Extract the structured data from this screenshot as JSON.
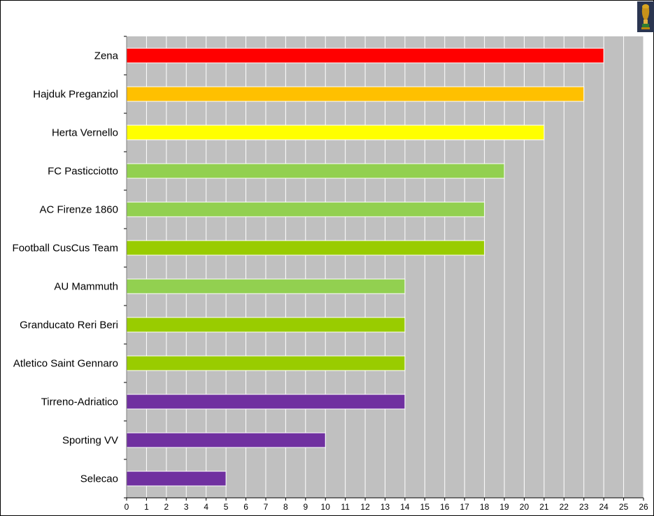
{
  "chart_data": {
    "type": "bar",
    "orientation": "horizontal",
    "categories": [
      "Zena",
      "Hajduk Preganziol",
      "Herta Vernello",
      "FC Pasticciotto",
      "AC Firenze 1860",
      "Football CusCus Team",
      "AU Mammuth",
      "Granducato Reri Beri",
      "Atletico Saint Gennaro",
      "Tirreno-Adriatico",
      "Sporting VV",
      "Selecao"
    ],
    "values": [
      24,
      23,
      21,
      19,
      18,
      18,
      14,
      14,
      14,
      14,
      10,
      5
    ],
    "bar_colors": [
      "#ff0000",
      "#ffc000",
      "#ffff00",
      "#92d050",
      "#92d050",
      "#99cc00",
      "#92d050",
      "#99cc00",
      "#99cc00",
      "#7030a0",
      "#7030a0",
      "#7030a0"
    ],
    "xlim": [
      0,
      26
    ],
    "xticks": [
      0,
      1,
      2,
      3,
      4,
      5,
      6,
      7,
      8,
      9,
      10,
      11,
      12,
      13,
      14,
      15,
      16,
      17,
      18,
      19,
      20,
      21,
      22,
      23,
      24,
      25,
      26
    ],
    "grid": "vertical",
    "plot_background": "#c0c0c0",
    "grid_color": "#ffffff",
    "title": "",
    "xlabel": "",
    "ylabel": ""
  },
  "icons": {
    "corner": "trophy-icon"
  }
}
